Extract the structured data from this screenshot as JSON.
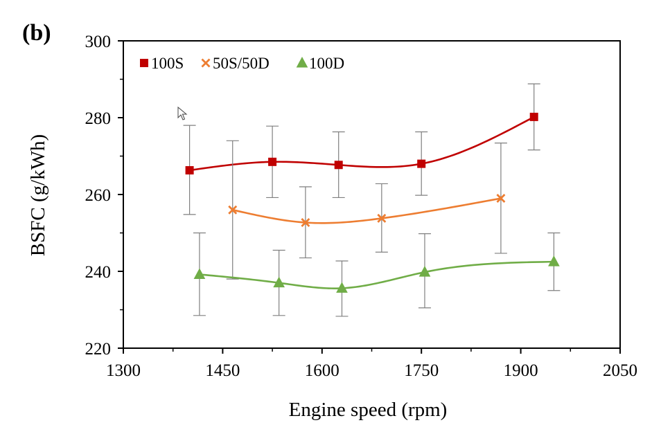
{
  "panel_label": "(b)",
  "cursor_icon": "mouse-pointer-icon",
  "chart_data": {
    "type": "scatter",
    "xlabel": "Engine speed (rpm)",
    "ylabel": "BSFC (g/kWh)",
    "xlim": [
      1300,
      2050
    ],
    "ylim": [
      220,
      300
    ],
    "xticks": [
      1300,
      1450,
      1600,
      1750,
      1900,
      2050
    ],
    "yticks": [
      220,
      240,
      260,
      280,
      300
    ],
    "grid": false,
    "legend_position": "top-left",
    "series": [
      {
        "name": "100S",
        "marker": "square",
        "color": "#c00000",
        "points": [
          {
            "x": 1400,
            "y": 266.3,
            "err_low": 254.8,
            "err_high": 278.0
          },
          {
            "x": 1525,
            "y": 268.5,
            "err_low": 259.2,
            "err_high": 277.8
          },
          {
            "x": 1625,
            "y": 267.7,
            "err_low": 259.2,
            "err_high": 276.3
          },
          {
            "x": 1750,
            "y": 268.0,
            "err_low": 259.8,
            "err_high": 276.3
          },
          {
            "x": 1920,
            "y": 280.2,
            "err_low": 271.6,
            "err_high": 288.8
          }
        ]
      },
      {
        "name": "50S/50D",
        "marker": "x",
        "color": "#ed7d31",
        "points": [
          {
            "x": 1465,
            "y": 256.0,
            "err_low": 238.0,
            "err_high": 274.0
          },
          {
            "x": 1575,
            "y": 252.7,
            "err_low": 243.5,
            "err_high": 262.0
          },
          {
            "x": 1690,
            "y": 253.8,
            "err_low": 245.0,
            "err_high": 262.8
          },
          {
            "x": 1870,
            "y": 259.0,
            "err_low": 244.7,
            "err_high": 273.4
          }
        ]
      },
      {
        "name": "100D",
        "marker": "triangle",
        "color": "#70ad47",
        "points": [
          {
            "x": 1415,
            "y": 239.2,
            "err_low": 228.5,
            "err_high": 250.0
          },
          {
            "x": 1535,
            "y": 237.0,
            "err_low": 228.5,
            "err_high": 245.5
          },
          {
            "x": 1630,
            "y": 235.6,
            "err_low": 228.3,
            "err_high": 242.7
          },
          {
            "x": 1755,
            "y": 239.8,
            "err_low": 230.5,
            "err_high": 249.8
          },
          {
            "x": 1950,
            "y": 242.5,
            "err_low": 235.0,
            "err_high": 250.0
          }
        ]
      }
    ]
  }
}
